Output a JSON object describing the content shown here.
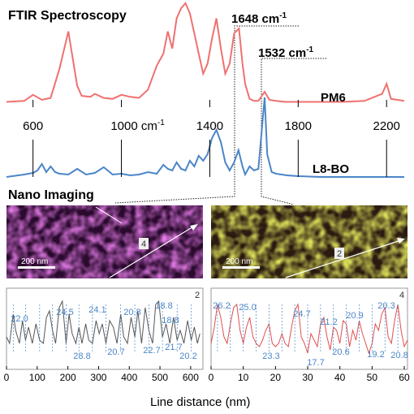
{
  "figure": {
    "title": "FTIR Spectroscopy",
    "nano_title": "Nano Imaging",
    "peak1": "1648 cm",
    "peak2": "1532 cm",
    "peak_sup": "-1",
    "series_top": "PM6",
    "series_bottom": "L8-BO",
    "scale_left": "200 nm",
    "scale_right": "200 nm",
    "marker_left": "4",
    "marker_right": "2",
    "xlabel": "Line distance (nm)",
    "colors": {
      "pm6": "#f07070",
      "l8bo": "#4a86c8",
      "left_trace": "#555555",
      "right_trace": "#e05050",
      "ann": "#4a86c8",
      "magenta": "#c038c8",
      "yellow": "#d8e020"
    }
  },
  "chart_data": [
    {
      "type": "line",
      "title": "FTIR Spectroscopy",
      "x_ticks": [
        "600",
        "1000 cm",
        "1400",
        "1800",
        "2200"
      ],
      "x_tick_values": [
        600,
        1000,
        1400,
        1800,
        2200
      ],
      "x_tick_sup": "-1",
      "xlim": [
        480,
        2280
      ],
      "series": [
        {
          "name": "PM6",
          "x": [
            480,
            560,
            600,
            640,
            680,
            720,
            760,
            800,
            820,
            860,
            880,
            920,
            960,
            1000,
            1040,
            1080,
            1120,
            1160,
            1190,
            1210,
            1230,
            1250,
            1270,
            1290,
            1310,
            1330,
            1350,
            1370,
            1390,
            1410,
            1430,
            1450,
            1470,
            1490,
            1510,
            1532,
            1548,
            1560,
            1580,
            1600,
            1620,
            1648,
            1670,
            1700,
            1740,
            1800,
            1900,
            2000,
            2100,
            2180,
            2200,
            2220,
            2280
          ],
          "y": [
            0.02,
            0.03,
            0.09,
            0.04,
            0.06,
            0.35,
            0.72,
            0.18,
            0.08,
            0.07,
            0.1,
            0.06,
            0.05,
            0.09,
            0.07,
            0.06,
            0.14,
            0.38,
            0.5,
            0.72,
            0.55,
            0.85,
            0.95,
            1.0,
            0.9,
            0.7,
            0.5,
            0.3,
            0.4,
            0.65,
            0.85,
            0.55,
            0.3,
            0.4,
            0.7,
            0.75,
            0.4,
            0.2,
            0.05,
            0.03,
            0.03,
            0.12,
            0.04,
            0.03,
            0.02,
            0.02,
            0.02,
            0.02,
            0.03,
            0.1,
            0.2,
            0.05,
            0.03
          ]
        },
        {
          "name": "L8-BO",
          "x": [
            480,
            560,
            600,
            620,
            640,
            660,
            680,
            700,
            720,
            760,
            800,
            840,
            880,
            920,
            960,
            1000,
            1040,
            1080,
            1120,
            1160,
            1190,
            1210,
            1230,
            1250,
            1270,
            1290,
            1310,
            1330,
            1350,
            1370,
            1390,
            1410,
            1430,
            1450,
            1470,
            1490,
            1510,
            1530,
            1548,
            1560,
            1580,
            1600,
            1620,
            1648,
            1660,
            1680,
            1700,
            1750,
            1800,
            1900,
            2000,
            2100,
            2200,
            2280
          ],
          "y": [
            0.02,
            0.05,
            0.07,
            0.1,
            0.18,
            0.08,
            0.15,
            0.08,
            0.06,
            0.05,
            0.12,
            0.05,
            0.07,
            0.14,
            0.05,
            0.06,
            0.04,
            0.05,
            0.08,
            0.06,
            0.17,
            0.12,
            0.1,
            0.2,
            0.12,
            0.1,
            0.22,
            0.15,
            0.28,
            0.22,
            0.3,
            0.5,
            0.6,
            0.45,
            0.2,
            0.1,
            0.2,
            0.35,
            0.15,
            0.05,
            0.15,
            0.1,
            0.12,
            1.0,
            0.3,
            0.08,
            0.06,
            0.04,
            0.03,
            0.02,
            0.02,
            0.02,
            0.02,
            0.02
          ]
        }
      ]
    },
    {
      "type": "line",
      "xlabel": "Line distance (nm)",
      "x_ticks": [
        0,
        100,
        200,
        300,
        400,
        500,
        600
      ],
      "xlim": [
        0,
        640
      ],
      "panel_index": "2",
      "annotations": [
        "22.0",
        "24.5",
        "24.1",
        "20.8",
        "18.8",
        "18.8",
        "28.8",
        "20.7",
        "22.7",
        "21.7",
        "20.2"
      ],
      "series": [
        {
          "name": "",
          "x": [
            0,
            10,
            22,
            30,
            42,
            52,
            62,
            72,
            84,
            96,
            108,
            120,
            130,
            140,
            150,
            160,
            172,
            182,
            194,
            204,
            214,
            226,
            236,
            246,
            258,
            268,
            280,
            292,
            302,
            312,
            324,
            336,
            348,
            360,
            372,
            382,
            394,
            406,
            418,
            428,
            440,
            452,
            464,
            476,
            486,
            496,
            508,
            520,
            532,
            544,
            556,
            566,
            578,
            590,
            602,
            612,
            622,
            630
          ],
          "y": [
            0.4,
            0.3,
            0.75,
            0.5,
            0.3,
            0.65,
            0.35,
            0.55,
            0.3,
            0.6,
            0.35,
            0.3,
            0.7,
            0.8,
            0.5,
            0.3,
            0.85,
            0.95,
            0.3,
            0.75,
            0.45,
            0.3,
            0.55,
            0.3,
            0.6,
            0.35,
            0.3,
            0.65,
            0.45,
            0.6,
            0.3,
            0.65,
            0.55,
            0.3,
            0.75,
            0.4,
            0.3,
            0.7,
            0.4,
            0.8,
            0.3,
            0.85,
            0.5,
            0.3,
            0.9,
            0.95,
            0.4,
            0.6,
            0.3,
            0.7,
            0.35,
            0.5,
            0.3,
            0.65,
            0.35,
            0.55,
            0.3,
            0.45
          ]
        }
      ]
    },
    {
      "type": "line",
      "xlabel": "Line distance (nm)",
      "x_ticks": [
        0,
        10,
        20,
        30,
        40,
        50,
        60
      ],
      "xlim": [
        0,
        61
      ],
      "panel_index": "4",
      "annotations": [
        "26.2",
        "25.0",
        "23.3",
        "24.7",
        "17.7",
        "21.2",
        "20.6",
        "20.9",
        "19.2",
        "20.3",
        "20.8"
      ],
      "series": [
        {
          "name": "",
          "x": [
            0,
            1,
            2,
            3,
            4,
            5,
            6,
            7,
            8,
            9,
            10,
            11,
            12,
            13,
            14,
            15,
            16,
            17,
            18,
            19,
            20,
            21,
            22,
            23,
            24,
            25,
            26,
            27,
            28,
            29,
            30,
            31,
            32,
            33,
            34,
            35,
            36,
            37,
            38,
            39,
            40,
            41,
            42,
            43,
            44,
            45,
            46,
            47,
            48,
            49,
            50,
            51,
            52,
            53,
            54,
            55,
            56,
            57,
            58,
            59,
            60,
            61
          ],
          "y": [
            0.3,
            0.55,
            0.9,
            0.7,
            0.4,
            0.3,
            0.6,
            0.85,
            0.9,
            0.5,
            0.3,
            0.55,
            0.7,
            0.4,
            0.3,
            0.25,
            0.35,
            0.5,
            0.6,
            0.3,
            0.25,
            0.3,
            0.45,
            0.3,
            0.25,
            0.55,
            0.8,
            0.9,
            0.4,
            0.3,
            0.15,
            0.45,
            0.35,
            0.25,
            0.6,
            0.7,
            0.4,
            0.2,
            0.55,
            0.5,
            0.3,
            0.65,
            0.6,
            0.25,
            0.5,
            0.35,
            0.65,
            0.45,
            0.3,
            0.15,
            0.3,
            0.6,
            0.5,
            0.75,
            0.85,
            0.4,
            0.3,
            0.65,
            0.9,
            0.5,
            0.25,
            0.35
          ]
        }
      ]
    }
  ]
}
